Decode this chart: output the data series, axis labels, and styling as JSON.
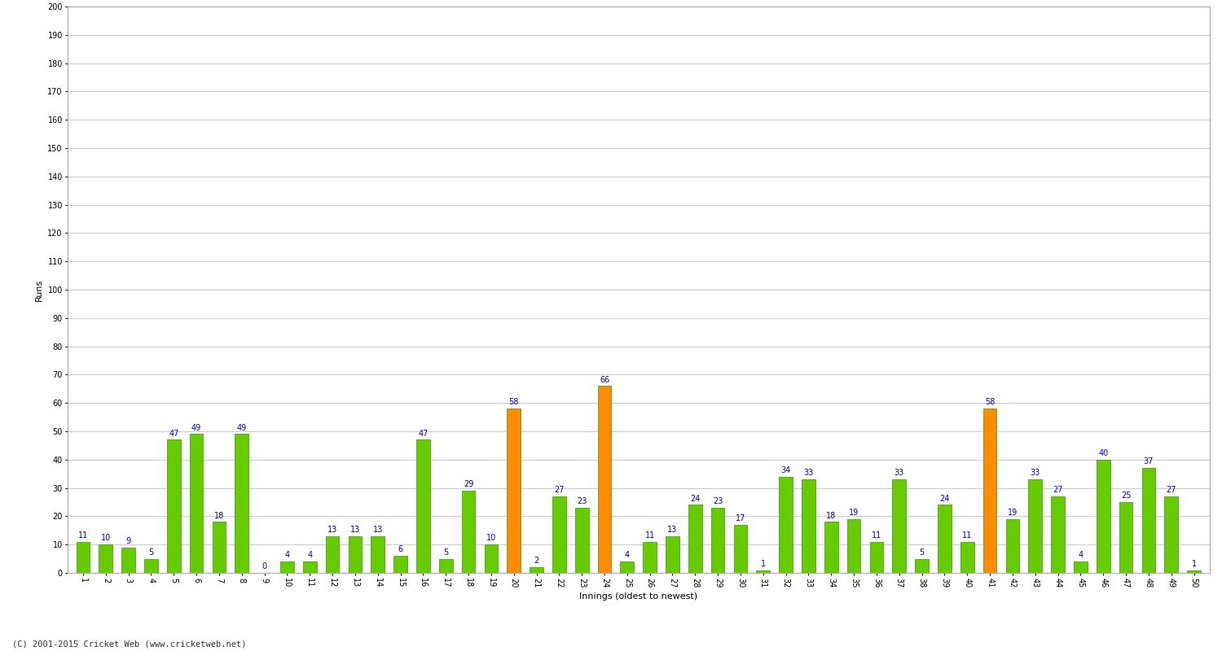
{
  "xlabel": "Innings (oldest to newest)",
  "ylabel": "Runs",
  "values": [
    11,
    10,
    9,
    5,
    47,
    49,
    18,
    49,
    0,
    4,
    4,
    13,
    13,
    13,
    6,
    47,
    5,
    29,
    10,
    58,
    2,
    27,
    23,
    66,
    4,
    11,
    13,
    24,
    23,
    17,
    1,
    34,
    33,
    18,
    19,
    11,
    33,
    5,
    24,
    11,
    58,
    19,
    33,
    27,
    4,
    40,
    25,
    37,
    27,
    1
  ],
  "labels": [
    1,
    2,
    3,
    4,
    5,
    6,
    7,
    8,
    9,
    10,
    11,
    12,
    13,
    14,
    15,
    16,
    17,
    18,
    19,
    20,
    21,
    22,
    23,
    24,
    25,
    26,
    27,
    28,
    29,
    30,
    31,
    32,
    33,
    34,
    35,
    36,
    37,
    38,
    39,
    40,
    41,
    42,
    43,
    44,
    45,
    46,
    47,
    48,
    49,
    50
  ],
  "colors": [
    "#66cc00",
    "#66cc00",
    "#66cc00",
    "#66cc00",
    "#66cc00",
    "#66cc00",
    "#66cc00",
    "#66cc00",
    "#66cc00",
    "#66cc00",
    "#66cc00",
    "#66cc00",
    "#66cc00",
    "#66cc00",
    "#66cc00",
    "#66cc00",
    "#66cc00",
    "#66cc00",
    "#66cc00",
    "#ff8c00",
    "#66cc00",
    "#66cc00",
    "#66cc00",
    "#ff8c00",
    "#66cc00",
    "#66cc00",
    "#66cc00",
    "#66cc00",
    "#66cc00",
    "#66cc00",
    "#66cc00",
    "#66cc00",
    "#66cc00",
    "#66cc00",
    "#66cc00",
    "#66cc00",
    "#66cc00",
    "#66cc00",
    "#66cc00",
    "#66cc00",
    "#ff8c00",
    "#66cc00",
    "#66cc00",
    "#66cc00",
    "#66cc00",
    "#66cc00",
    "#66cc00",
    "#66cc00",
    "#66cc00",
    "#66cc00"
  ],
  "ylim": [
    0,
    200
  ],
  "yticks": [
    0,
    10,
    20,
    30,
    40,
    50,
    60,
    70,
    80,
    90,
    100,
    110,
    120,
    130,
    140,
    150,
    160,
    170,
    180,
    190,
    200
  ],
  "background_color": "#ffffff",
  "grid_color": "#cccccc",
  "bar_edge_color": "#339900",
  "label_color": "#0000cc",
  "label_fontsize": 7,
  "axis_label_fontsize": 8,
  "tick_fontsize": 7,
  "copyright": "(C) 2001-2015 Cricket Web (www.cricketweb.net)"
}
